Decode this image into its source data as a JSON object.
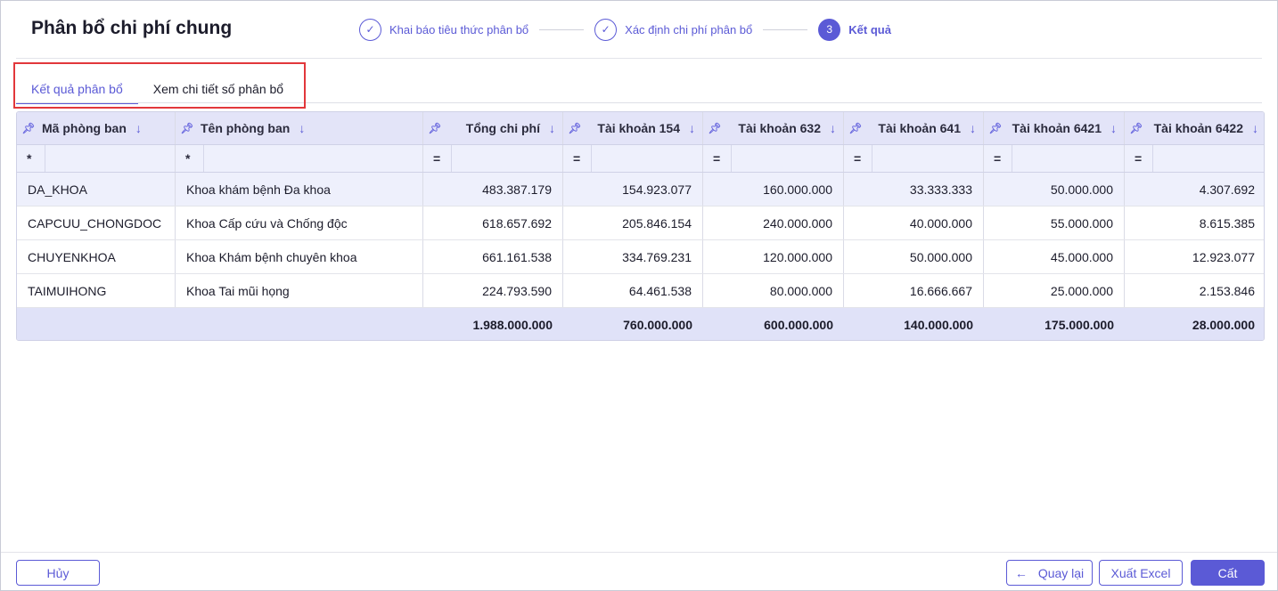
{
  "page": {
    "title": "Phân bổ chi phí chung"
  },
  "stepper": {
    "steps": [
      {
        "marker": "✓",
        "label": "Khai báo tiêu thức phân bổ"
      },
      {
        "marker": "✓",
        "label": "Xác định chi phí phân bổ"
      },
      {
        "marker": "3",
        "label": "Kết quả"
      }
    ]
  },
  "tabs": [
    {
      "label": "Kết quả phân bổ",
      "active": true
    },
    {
      "label": "Xem chi tiết số phân bổ",
      "active": false
    }
  ],
  "table": {
    "columns": [
      {
        "label": "Mã phòng ban",
        "filter": "*"
      },
      {
        "label": "Tên phòng ban",
        "filter": "*"
      },
      {
        "label": "Tổng chi phí",
        "filter": "="
      },
      {
        "label": "Tài khoản 154",
        "filter": "="
      },
      {
        "label": "Tài khoản 632",
        "filter": "="
      },
      {
        "label": "Tài khoản 641",
        "filter": "="
      },
      {
        "label": "Tài khoản 6421",
        "filter": "="
      },
      {
        "label": "Tài khoản 6422",
        "filter": "="
      }
    ],
    "rows": [
      [
        "DA_KHOA",
        "Khoa khám bệnh Đa khoa",
        "483.387.179",
        "154.923.077",
        "160.000.000",
        "33.333.333",
        "50.000.000",
        "4.307.692"
      ],
      [
        "CAPCUU_CHONGDOC",
        "Khoa Cấp cứu và Chống độc",
        "618.657.692",
        "205.846.154",
        "240.000.000",
        "40.000.000",
        "55.000.000",
        "8.615.385"
      ],
      [
        "CHUYENKHOA",
        "Khoa Khám bệnh chuyên khoa",
        "661.161.538",
        "334.769.231",
        "120.000.000",
        "50.000.000",
        "45.000.000",
        "12.923.077"
      ],
      [
        "TAIMUIHONG",
        "Khoa Tai mũi họng",
        "224.793.590",
        "64.461.538",
        "80.000.000",
        "16.666.667",
        "25.000.000",
        "2.153.846"
      ]
    ],
    "totals": [
      "",
      "",
      "1.988.000.000",
      "760.000.000",
      "600.000.000",
      "140.000.000",
      "175.000.000",
      "28.000.000"
    ]
  },
  "footer": {
    "cancel_label": "Hủy",
    "back_label": "Quay lại",
    "export_label": "Xuất Excel",
    "save_label": "Cất"
  },
  "colors": {
    "accent": "#5b5ad6",
    "highlight_border": "#e2373b",
    "header_bg": "#e3e4f8"
  }
}
